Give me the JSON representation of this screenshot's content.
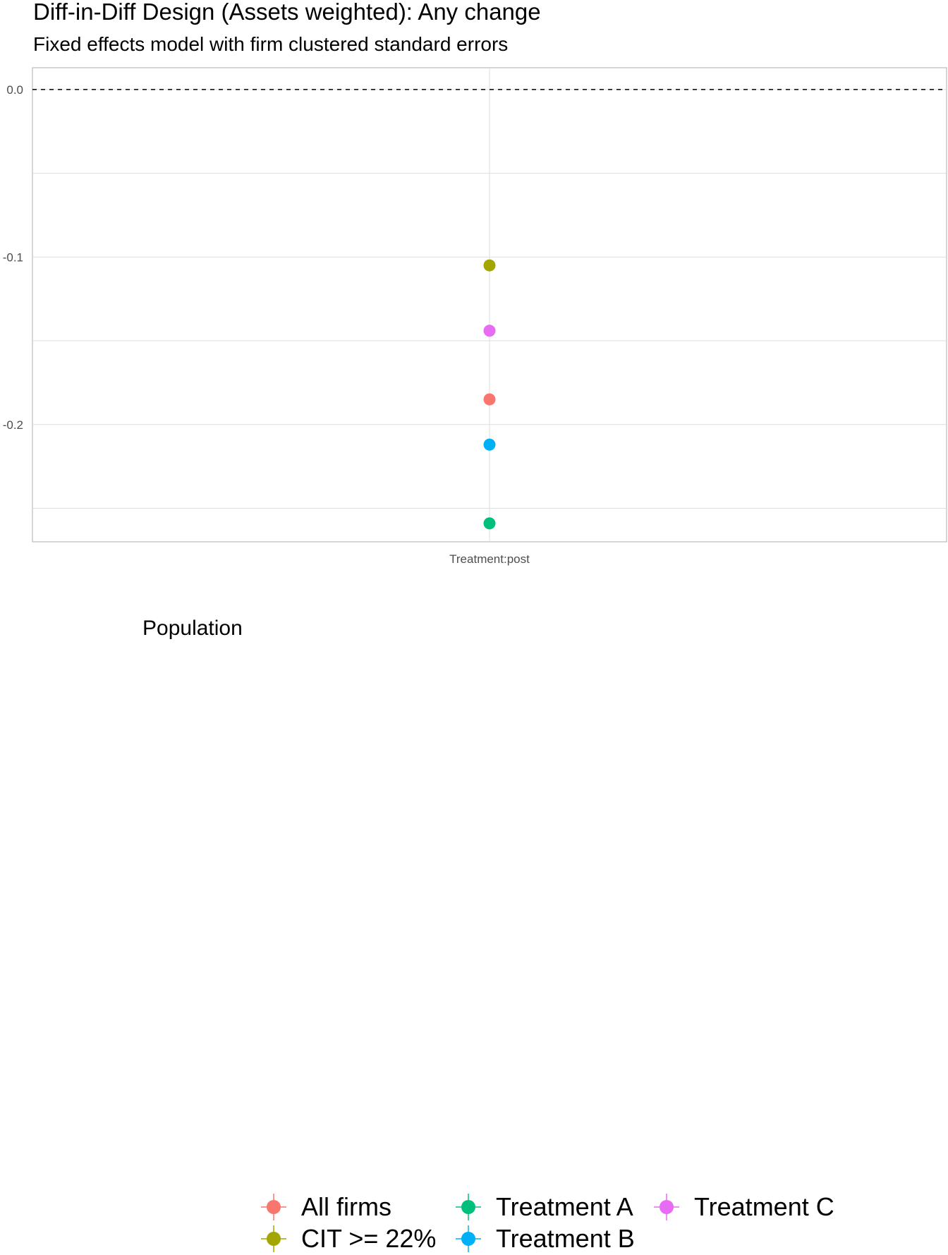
{
  "title": "Diff-in-Diff Design (Assets weighted): Any change",
  "subtitle": "Fixed effects model with firm clustered standard errors",
  "chart_data": {
    "type": "scatter",
    "x": [
      "Treatment:post"
    ],
    "xlabel": "",
    "ylabel": "",
    "ylim": [
      -0.27,
      0.013
    ],
    "yticks": [
      0.0,
      -0.1,
      -0.2
    ],
    "ytick_labels": [
      "0.0",
      "-0.1",
      "-0.2"
    ],
    "reference_line": {
      "y": 0.0,
      "style": "dashed"
    },
    "grid": true,
    "legend_position": "bottom",
    "legend_title": "Population",
    "series": [
      {
        "name": "All firms",
        "color": "#F8766D",
        "values": [
          -0.185
        ]
      },
      {
        "name": "CIT >= 22%",
        "color": "#A3A500",
        "values": [
          -0.105
        ]
      },
      {
        "name": "Treatment A",
        "color": "#00BF7D",
        "values": [
          -0.259
        ]
      },
      {
        "name": "Treatment B",
        "color": "#00B0F6",
        "values": [
          -0.212
        ]
      },
      {
        "name": "Treatment C",
        "color": "#E76BF3",
        "values": [
          -0.144
        ]
      }
    ]
  }
}
